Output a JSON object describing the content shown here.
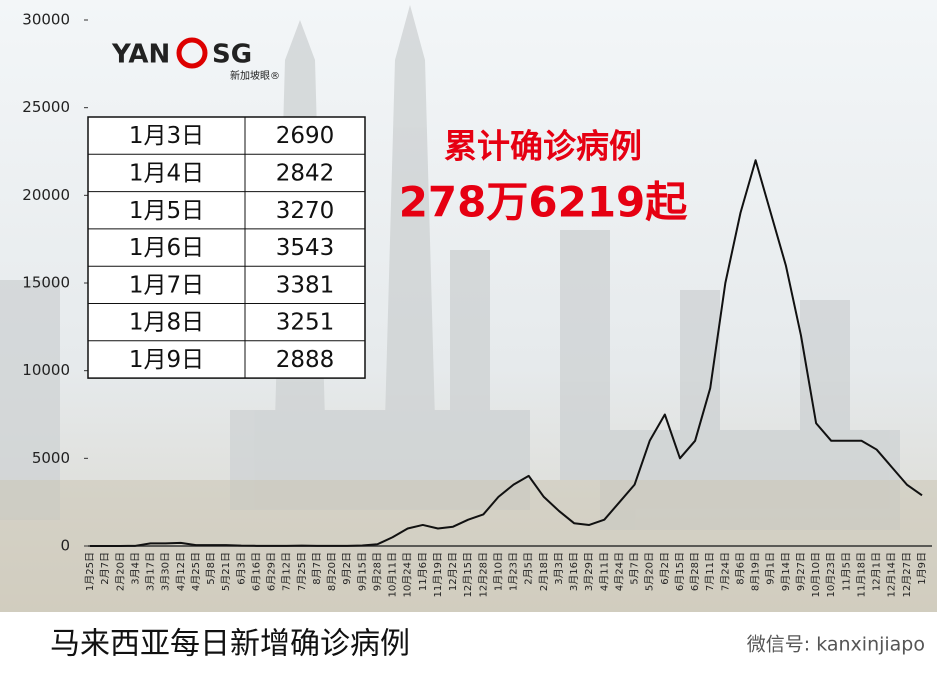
{
  "chart_data": {
    "type": "line",
    "categories": [
      "1月25日",
      "2月7日",
      "2月20日",
      "3月4日",
      "3月17日",
      "3月30日",
      "4月12日",
      "4月25日",
      "5月8日",
      "5月21日",
      "6月3日",
      "6月16日",
      "6月29日",
      "7月12日",
      "7月25日",
      "8月7日",
      "8月20日",
      "9月2日",
      "9月15日",
      "9月28日",
      "10月11日",
      "10月24日",
      "11月6日",
      "11月19日",
      "12月2日",
      "12月15日",
      "12月28日",
      "1月10日",
      "1月23日",
      "2月5日",
      "2月18日",
      "3月3日",
      "3月16日",
      "3月29日",
      "4月11日",
      "4月24日",
      "5月7日",
      "5月20日",
      "6月2日",
      "6月15日",
      "6月28日",
      "7月11日",
      "7月24日",
      "8月6日",
      "8月19日",
      "9月1日",
      "9月14日",
      "9月27日",
      "10月10日",
      "10月23日",
      "11月5日",
      "11月18日",
      "12月1日",
      "12月14日",
      "12月27日",
      "1月9日"
    ],
    "series": [
      {
        "color": "#111111",
        "values": [
          0,
          0,
          0,
          10,
          150,
          150,
          180,
          50,
          50,
          50,
          20,
          10,
          5,
          10,
          20,
          10,
          10,
          10,
          30,
          100,
          500,
          1000,
          1200,
          1000,
          1100,
          1500,
          1800,
          2800,
          3500,
          4000,
          2800,
          2000,
          1300,
          1200,
          1500,
          2500,
          3500,
          6000,
          7500,
          5000,
          6000,
          9000,
          15000,
          19000,
          22000,
          19000,
          16000,
          12000,
          7000,
          6000,
          6000,
          6000,
          5500,
          4500,
          3500,
          2888
        ]
      }
    ],
    "ylim": [
      0,
      30000
    ],
    "yticks": [
      0,
      5000,
      10000,
      15000,
      20000,
      25000,
      30000
    ]
  },
  "table": {
    "rows": [
      [
        "1月3日",
        2690
      ],
      [
        "1月4日",
        2842
      ],
      [
        "1月5日",
        3270
      ],
      [
        "1月6日",
        3543
      ],
      [
        "1月7日",
        3381
      ],
      [
        "1月8日",
        3251
      ],
      [
        "1月9日",
        2888
      ]
    ]
  },
  "headline": {
    "line1": "累计确诊病例",
    "line2": "278万6219起"
  },
  "logo": {
    "left": "YAN",
    "right": "SG",
    "sub": "新加坡眼®"
  },
  "caption": "马来西亚每日新增确诊病例",
  "watermark": "微信号: kanxinjiapo"
}
